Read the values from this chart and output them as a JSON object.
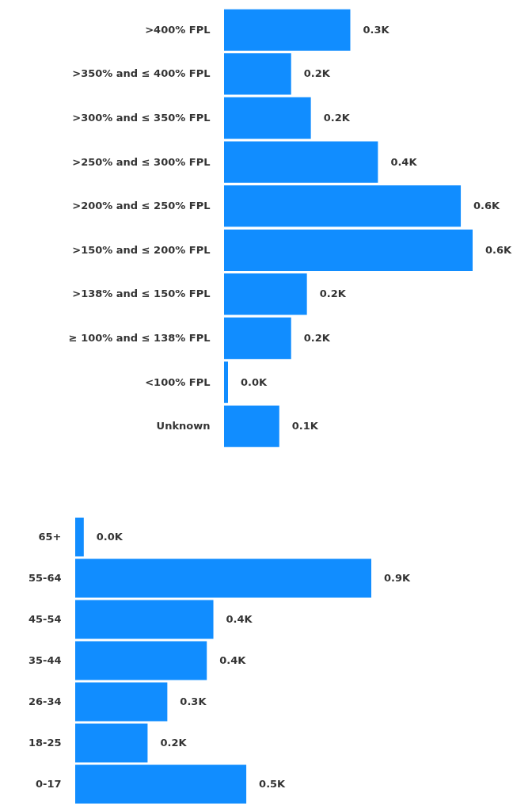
{
  "chart_data": [
    {
      "type": "bar",
      "orientation": "horizontal",
      "categories": [
        ">400% FPL",
        ">350% and ≤ 400% FPL",
        ">300% and ≤ 350% FPL",
        ">250% and ≤ 300% FPL",
        ">200% and ≤ 250% FPL",
        ">150% and ≤ 200% FPL",
        ">138% and ≤ 150% FPL",
        "≥ 100% and ≤ 138% FPL",
        "<100% FPL",
        "Unknown"
      ],
      "values": [
        0.32,
        0.17,
        0.22,
        0.39,
        0.6,
        0.63,
        0.21,
        0.17,
        0.01,
        0.14
      ],
      "value_labels": [
        "0.3K",
        "0.2K",
        "0.2K",
        "0.4K",
        "0.6K",
        "0.6K",
        "0.2K",
        "0.2K",
        "0.0K",
        "0.1K"
      ],
      "color": "#118dff"
    },
    {
      "type": "bar",
      "orientation": "horizontal",
      "categories": [
        "65+",
        "55-64",
        "45-54",
        "35-44",
        "26-34",
        "18-25",
        "0-17"
      ],
      "values": [
        0.026,
        0.9,
        0.42,
        0.4,
        0.28,
        0.22,
        0.52
      ],
      "value_labels": [
        "0.0K",
        "0.9K",
        "0.4K",
        "0.4K",
        "0.3K",
        "0.2K",
        "0.5K"
      ],
      "color": "#118dff"
    }
  ]
}
